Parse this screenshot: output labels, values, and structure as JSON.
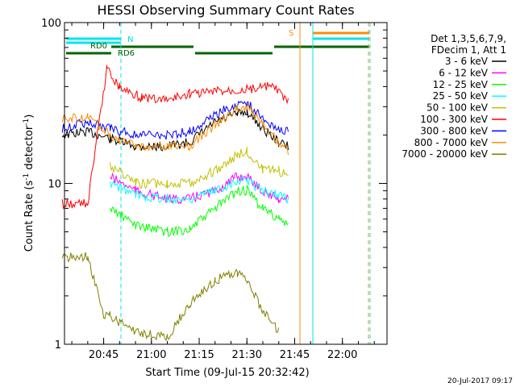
{
  "chart_data": {
    "type": "line",
    "title": "HESSI Observing Summary Count Rates",
    "xlabel": "Start Time (09-Jul-15 20:32:42)",
    "ylabel_main": "Count Rate (s",
    "ylabel_sup1": "-1",
    "ylabel_mid": " detector",
    "ylabel_sup2": "-1",
    "ylabel_end": ")",
    "yscale": "log",
    "ylim": [
      1,
      100
    ],
    "xlim": [
      "20:32:42",
      "22:14:00"
    ],
    "x_ticks": [
      "20:45",
      "21:00",
      "21:15",
      "21:30",
      "21:45",
      "22:00"
    ],
    "y_ticks": [
      "1",
      "10",
      "100"
    ],
    "legend_header": [
      "Det 1,3,5,6,7,9,",
      "FDecim 1, Att 1"
    ],
    "legend_position": "right",
    "timestamp": "20-Jul-2017 09:17",
    "annotations": [
      {
        "text": "RD0",
        "color": "#006400"
      },
      {
        "text": "RD6",
        "color": "#006400"
      },
      {
        "text": "N",
        "color": "#00d8e0"
      },
      {
        "text": "S",
        "color": "#ff8c00"
      }
    ],
    "series": [
      {
        "name": "3 - 6 keV",
        "color": "#000000",
        "x": [
          "20:32",
          "20:40",
          "20:47",
          "20:55",
          "21:05",
          "21:12",
          "21:20",
          "21:27",
          "21:30",
          "21:35",
          "21:40",
          "21:43"
        ],
        "y": [
          20,
          21,
          19,
          17,
          17,
          18,
          24,
          27,
          28,
          22,
          18,
          17
        ]
      },
      {
        "name": "6 - 12 keV",
        "color": "#ff00ff",
        "x": [
          "20:47",
          "20:55",
          "21:05",
          "21:12",
          "21:20",
          "21:27",
          "21:30",
          "21:35",
          "21:40",
          "21:43"
        ],
        "y": [
          11,
          9,
          8,
          8,
          9,
          11,
          11,
          9,
          8,
          8
        ]
      },
      {
        "name": "12 - 25 keV",
        "color": "#00ff00",
        "x": [
          "20:47",
          "20:55",
          "21:05",
          "21:12",
          "21:20",
          "21:27",
          "21:30",
          "21:35",
          "21:40",
          "21:43"
        ],
        "y": [
          7,
          5.5,
          5,
          5.2,
          7,
          9,
          9,
          7,
          6,
          5.5
        ]
      },
      {
        "name": "25 - 50 keV",
        "color": "#00ffff",
        "x": [
          "20:47",
          "20:55",
          "21:05",
          "21:12",
          "21:20",
          "21:27",
          "21:30",
          "21:35",
          "21:40",
          "21:43"
        ],
        "y": [
          10,
          8.5,
          8,
          8,
          9,
          10.5,
          10.5,
          9,
          8.5,
          8
        ]
      },
      {
        "name": "50 - 100 keV",
        "color": "#c0c000",
        "x": [
          "20:47",
          "20:55",
          "21:05",
          "21:12",
          "21:20",
          "21:27",
          "21:30",
          "21:35",
          "21:40",
          "21:43"
        ],
        "y": [
          13,
          10,
          10,
          10,
          12,
          15,
          16,
          12,
          12,
          11
        ]
      },
      {
        "name": "100 - 300 keV",
        "color": "#ff0000",
        "x": [
          "20:32",
          "20:40",
          "20:46",
          "20:50",
          "20:57",
          "21:05",
          "21:12",
          "21:38",
          "21:43"
        ],
        "y": [
          7.5,
          7.5,
          52,
          40,
          34,
          33,
          36,
          40,
          32
        ]
      },
      {
        "name": "300 - 800 keV",
        "color": "#0000ff",
        "x": [
          "20:32",
          "20:40",
          "20:47",
          "20:55",
          "21:05",
          "21:12",
          "21:20",
          "21:27",
          "21:30",
          "21:35",
          "21:40",
          "21:43"
        ],
        "y": [
          22,
          24,
          22,
          20,
          20,
          21,
          27,
          31,
          32,
          25,
          22,
          21
        ]
      },
      {
        "name": "800 - 7000 keV",
        "color": "#ff8c00",
        "x": [
          "20:32",
          "20:40",
          "20:47",
          "20:55",
          "21:05",
          "21:12",
          "21:20",
          "21:27",
          "21:30",
          "21:35",
          "21:40",
          "21:43"
        ],
        "y": [
          25,
          26,
          20,
          17,
          17,
          17,
          23,
          29,
          30,
          24,
          18,
          16
        ]
      },
      {
        "name": "7000 - 20000 keV",
        "color": "#808000",
        "x": [
          "20:32",
          "20:40",
          "20:45",
          "20:47",
          "20:55",
          "21:05",
          "21:12",
          "21:20",
          "21:27",
          "21:30",
          "21:35",
          "21:40"
        ],
        "y": [
          3.5,
          3.5,
          1.5,
          1.5,
          1.2,
          1.1,
          1.8,
          2.5,
          2.8,
          2.5,
          1.6,
          1.2
        ]
      }
    ]
  }
}
